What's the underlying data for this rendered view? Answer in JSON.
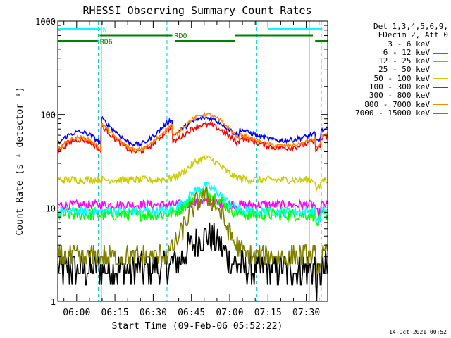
{
  "chart_data": {
    "type": "line",
    "title": "RHESSI Observing Summary Count Rates",
    "xlabel": "Start Time (09-Feb-06 05:52:22)",
    "ylabel": "Count Rate (s⁻¹ detector⁻¹)",
    "yscale": "log",
    "ylim": [
      1,
      1000
    ],
    "xlim_minutes": [
      -7.4,
      98.4
    ],
    "y_ticks": [
      "1",
      "10",
      "100",
      "1000"
    ],
    "x_ticks": [
      {
        "t": 0,
        "label": "06:00"
      },
      {
        "t": 15,
        "label": "06:15"
      },
      {
        "t": 30,
        "label": "06:30"
      },
      {
        "t": 45,
        "label": "06:45"
      },
      {
        "t": 60,
        "label": "07:00"
      },
      {
        "t": 75,
        "label": "07:15"
      },
      {
        "t": 90,
        "label": "07:30"
      }
    ],
    "legend_header": [
      "Det 1,3,4,5,6,9,",
      "FDecim 2, Att 0"
    ],
    "legend_position": "right",
    "night_intervals": [
      [
        8.5,
        35.4
      ],
      [
        70.4,
        95.9
      ]
    ],
    "saa_boundaries": [
      9.7,
      91.2
    ],
    "flag_bars": [
      {
        "label": "N",
        "color": "#00ffff",
        "level": 1,
        "segments": [
          [
            -7.4,
            9.4
          ],
          [
            75.0,
            96.2
          ]
        ]
      },
      {
        "label": "RD0",
        "color": "#008000",
        "level": 2,
        "segments": [
          [
            9.0,
            37.5
          ],
          [
            62.2,
            92.6
          ]
        ]
      },
      {
        "label": "RD6",
        "color": "#008000",
        "level": 3,
        "segments": [
          [
            -7.4,
            8.3
          ],
          [
            38.5,
            62.0
          ],
          [
            93.5,
            98.4
          ]
        ]
      }
    ],
    "series": [
      {
        "name": "3 - 6 keV",
        "color": "#000000",
        "shape": "flare",
        "base": 2.2,
        "peak": 5.0,
        "noise": 0.18
      },
      {
        "name": "6 - 12 keV",
        "color": "#ff00ff",
        "shape": "flat",
        "base": 10.8,
        "peak": 11.5,
        "noise": 0.05
      },
      {
        "name": "12 - 25 keV",
        "color": "#00ff00",
        "shape": "flare",
        "base": 8.5,
        "peak": 14.5,
        "noise": 0.07
      },
      {
        "name": "25 - 50 keV",
        "color": "#00ffff",
        "shape": "flare",
        "base": 9.2,
        "peak": 17.0,
        "noise": 0.05
      },
      {
        "name": "50 - 100 keV",
        "color": "#cccc00",
        "shape": "flare",
        "base": 20.0,
        "peak": 34.0,
        "noise": 0.04
      },
      {
        "name": "100 - 300 keV",
        "color": "#ff0000",
        "shape": "orbit",
        "base": 40.0,
        "peak": 78.0,
        "noise": 0.03
      },
      {
        "name": "300 - 800 keV",
        "color": "#0000ff",
        "shape": "orbit",
        "base": 48.0,
        "peak": 92.0,
        "noise": 0.025
      },
      {
        "name": "800 - 7000 keV",
        "color": "#ff8800",
        "shape": "orbit",
        "base": 42.0,
        "peak": 100.0,
        "noise": 0.02
      },
      {
        "name": "7000 - 15000 keV",
        "color": "#808000",
        "shape": "flare",
        "base": 3.0,
        "peak": 13.0,
        "noise": 0.12
      }
    ]
  },
  "footer": {
    "date": "14-Oct-2021 00:52"
  }
}
